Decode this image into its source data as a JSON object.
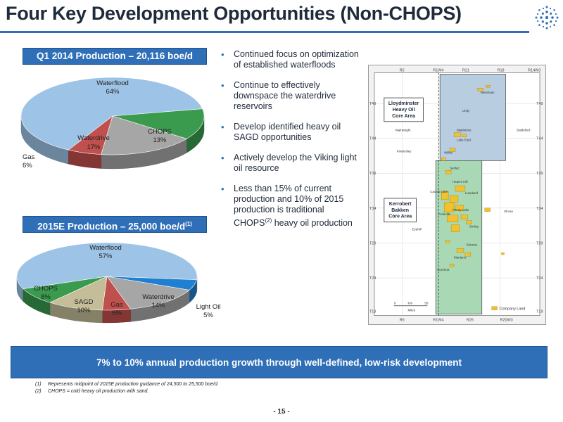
{
  "title": "Four Key Development Opportunities (Non-CHOPS)",
  "logo_icon": "snowflake-icon",
  "chart1_header": "Q1 2014 Production – 20,116 boe/d",
  "chart2_header_main": "2015E Production – 25,000 boe/d",
  "chart2_header_sup": "(1)",
  "chart_data": [
    {
      "type": "pie",
      "title": "Q1 2014 Production – 20,116 boe/d",
      "slices": [
        {
          "label": "Waterflood",
          "value": 64,
          "value_label": "64%",
          "color": "#9dc3e6"
        },
        {
          "label": "CHOPS",
          "value": 13,
          "value_label": "13%",
          "color": "#3a9a4e"
        },
        {
          "label": "Waterdrive",
          "value": 17,
          "value_label": "17%",
          "color": "#a6a6a6"
        },
        {
          "label": "Gas",
          "value": 6,
          "value_label": "6%",
          "color": "#c0504d"
        }
      ]
    },
    {
      "type": "pie",
      "title": "2015E Production – 25,000 boe/d",
      "slices": [
        {
          "label": "Waterflood",
          "value": 57,
          "value_label": "57%",
          "color": "#9dc3e6"
        },
        {
          "label": "Light Oil",
          "value": 5,
          "value_label": "5%",
          "color": "#1f7fd0"
        },
        {
          "label": "Waterdrive",
          "value": 14,
          "value_label": "14%",
          "color": "#a6a6a6"
        },
        {
          "label": "Gas",
          "value": 5,
          "value_label": "5%",
          "color": "#c0504d"
        },
        {
          "label": "SAGD",
          "value": 10,
          "value_label": "10%",
          "color": "#c4bd97"
        },
        {
          "label": "CHOPS",
          "value": 8,
          "value_label": "8%",
          "color": "#3a9a4e"
        }
      ]
    }
  ],
  "bullets": [
    {
      "text": "Continued focus on optimization of established waterfloods"
    },
    {
      "text": "Continue to effectively downspace the waterdrive reservoirs"
    },
    {
      "text": "Develop identified heavy oil SAGD opportunities"
    },
    {
      "text": "Actively develop the Viking light oil resource"
    },
    {
      "text_before": "Less than 15% of current production and 10% of 2015 production is traditional CHOPS",
      "sup": "(2)",
      "text_after": " heavy oil production"
    }
  ],
  "map": {
    "top_ranges": [
      "R5",
      "R1W4",
      "R21",
      "R18",
      "R14W3"
    ],
    "bottom_ranges": [
      "R5",
      "R1W4",
      "R25",
      "R20W3"
    ],
    "left_townships": [
      "T49",
      "T44",
      "T39",
      "T34",
      "T29",
      "T24",
      "T19"
    ],
    "right_townships": [
      "T49",
      "T44",
      "T39",
      "T34",
      "T29",
      "T24",
      "T19"
    ],
    "core_area_1": [
      "Lloydminster",
      "Heavy Oil",
      "Core Area"
    ],
    "core_area_2": [
      "Kerrobert",
      "Bakken",
      "Core Area"
    ],
    "places": [
      "Westmain",
      "Maidstone",
      "Lake East",
      "Wilkie",
      "Senlac",
      "Cactus Lake",
      "Heart's Hill",
      "Luseland",
      "Coleville",
      "Plenty Lake",
      "Smiley",
      "Eyehill",
      "Elrose",
      "Eatonia",
      "Kindersley",
      "Mantario",
      "Cornhort",
      "Battleford",
      "Wainwright",
      "Unity"
    ],
    "legend_label": "Company Land",
    "scale_labels": [
      "0",
      "Km",
      "50"
    ],
    "scale_unit": "Miles"
  },
  "banner": "7% to 10% annual production growth through well-defined, low-risk development",
  "footnotes": [
    {
      "num": "(1)",
      "text": "Represents midpoint of 2015E production guidance of 24,500 to 25,500 boe/d."
    },
    {
      "num": "(2)",
      "text": "CHOPS = cold heavy oil production with sand."
    }
  ],
  "page_number": "- 15 -"
}
